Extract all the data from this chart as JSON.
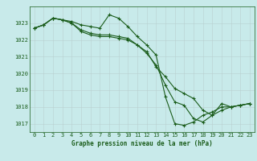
{
  "title": "Graphe pression niveau de la mer (hPa)",
  "bg_color": "#c8eaea",
  "line_color": "#1a5c1a",
  "ylim": [
    1016.5,
    1024.0
  ],
  "xlim": [
    -0.5,
    23.5
  ],
  "yticks": [
    1017,
    1018,
    1019,
    1020,
    1021,
    1022,
    1023
  ],
  "xticks": [
    0,
    1,
    2,
    3,
    4,
    5,
    6,
    7,
    8,
    9,
    10,
    11,
    12,
    13,
    14,
    15,
    16,
    17,
    18,
    19,
    20,
    21,
    22,
    23
  ],
  "s1": [
    1022.7,
    1022.9,
    1023.3,
    1023.2,
    1023.1,
    1022.9,
    1022.8,
    1022.7,
    1023.5,
    1023.3,
    1022.8,
    1022.2,
    1021.7,
    1021.1,
    1018.6,
    1017.0,
    1016.9,
    1017.1,
    1017.5,
    1017.7,
    1018.0,
    1018.0,
    1018.1,
    1018.2
  ],
  "s2": [
    1022.7,
    1022.9,
    1023.3,
    1023.2,
    1023.0,
    1022.6,
    1022.4,
    1022.3,
    1022.3,
    1022.2,
    1022.1,
    1021.7,
    1021.3,
    1020.4,
    1019.8,
    1019.1,
    1018.8,
    1018.5,
    1017.8,
    1017.5,
    1017.8,
    1018.0,
    1018.1,
    1018.2
  ],
  "s3": [
    1022.7,
    1022.9,
    1023.3,
    1023.2,
    1023.0,
    1022.5,
    1022.3,
    1022.2,
    1022.2,
    1022.1,
    1022.0,
    1021.7,
    1021.2,
    1020.5,
    1019.3,
    1018.3,
    1018.1,
    1017.3,
    1017.1,
    1017.5,
    1018.2,
    1018.0,
    1018.1,
    1018.2
  ],
  "tick_fontsize": 5,
  "xlabel_fontsize": 5.5
}
